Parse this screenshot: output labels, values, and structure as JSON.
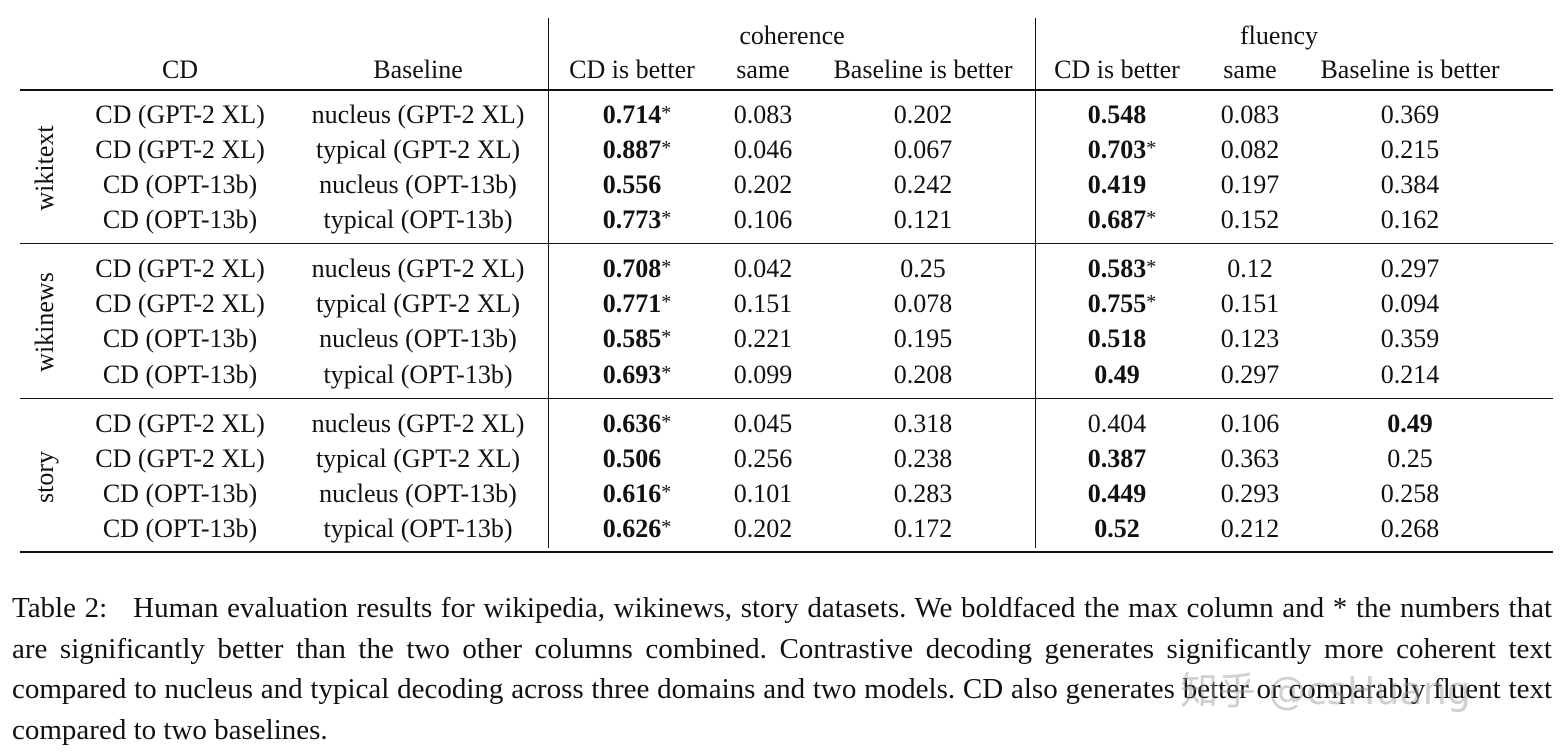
{
  "table": {
    "groups": [
      "coherence",
      "fluency"
    ],
    "columns": [
      "CD",
      "Baseline",
      "CD is better",
      "same",
      "Baseline is better",
      "CD is better",
      "same",
      "Baseline is better"
    ],
    "sections": [
      {
        "name": "wikitext",
        "rows": [
          {
            "cd": "CD (GPT-2 XL)",
            "baseline": "nucleus (GPT-2 XL)",
            "cells": [
              {
                "value": 0.714,
                "bold": true,
                "mark": "*"
              },
              {
                "value": 0.083
              },
              {
                "value": 0.202
              },
              {
                "value": 0.548,
                "bold": true
              },
              {
                "value": 0.083
              },
              {
                "value": 0.369
              }
            ]
          },
          {
            "cd": "CD (GPT-2 XL)",
            "baseline": "typical (GPT-2 XL)",
            "cells": [
              {
                "value": 0.887,
                "bold": true,
                "mark": "*"
              },
              {
                "value": 0.046
              },
              {
                "value": 0.067
              },
              {
                "value": 0.703,
                "bold": true,
                "mark": "*"
              },
              {
                "value": 0.082
              },
              {
                "value": 0.215
              }
            ]
          },
          {
            "cd": "CD (OPT-13b)",
            "baseline": "nucleus (OPT-13b)",
            "cells": [
              {
                "value": 0.556,
                "bold": true
              },
              {
                "value": 0.202
              },
              {
                "value": 0.242
              },
              {
                "value": 0.419,
                "bold": true
              },
              {
                "value": 0.197
              },
              {
                "value": 0.384
              }
            ]
          },
          {
            "cd": "CD (OPT-13b)",
            "baseline": "typical (OPT-13b)",
            "cells": [
              {
                "value": 0.773,
                "bold": true,
                "mark": "*"
              },
              {
                "value": 0.106
              },
              {
                "value": 0.121
              },
              {
                "value": 0.687,
                "bold": true,
                "mark": "*"
              },
              {
                "value": 0.152
              },
              {
                "value": 0.162
              }
            ]
          }
        ]
      },
      {
        "name": "wikinews",
        "rows": [
          {
            "cd": "CD (GPT-2 XL)",
            "baseline": "nucleus (GPT-2 XL)",
            "cells": [
              {
                "value": 0.708,
                "bold": true,
                "mark": "*"
              },
              {
                "value": 0.042
              },
              {
                "value": 0.25
              },
              {
                "value": 0.583,
                "bold": true,
                "mark": "*"
              },
              {
                "value": 0.12
              },
              {
                "value": 0.297
              }
            ]
          },
          {
            "cd": "CD (GPT-2 XL)",
            "baseline": "typical (GPT-2 XL)",
            "cells": [
              {
                "value": 0.771,
                "bold": true,
                "mark": "*"
              },
              {
                "value": 0.151
              },
              {
                "value": 0.078
              },
              {
                "value": 0.755,
                "bold": true,
                "mark": "*"
              },
              {
                "value": 0.151
              },
              {
                "value": 0.094
              }
            ]
          },
          {
            "cd": "CD (OPT-13b)",
            "baseline": "nucleus (OPT-13b)",
            "cells": [
              {
                "value": 0.585,
                "bold": true,
                "mark": "*"
              },
              {
                "value": 0.221
              },
              {
                "value": 0.195
              },
              {
                "value": 0.518,
                "bold": true
              },
              {
                "value": 0.123
              },
              {
                "value": 0.359
              }
            ]
          },
          {
            "cd": "CD (OPT-13b)",
            "baseline": "typical (OPT-13b)",
            "cells": [
              {
                "value": 0.693,
                "bold": true,
                "mark": "*"
              },
              {
                "value": 0.099
              },
              {
                "value": 0.208
              },
              {
                "value": 0.49,
                "bold": true
              },
              {
                "value": 0.297
              },
              {
                "value": 0.214
              }
            ]
          }
        ]
      },
      {
        "name": "story",
        "rows": [
          {
            "cd": "CD (GPT-2 XL)",
            "baseline": "nucleus (GPT-2 XL)",
            "cells": [
              {
                "value": 0.636,
                "bold": true,
                "mark": "*"
              },
              {
                "value": 0.045
              },
              {
                "value": 0.318
              },
              {
                "value": 0.404
              },
              {
                "value": 0.106
              },
              {
                "value": 0.49,
                "bold": true
              }
            ]
          },
          {
            "cd": "CD (GPT-2 XL)",
            "baseline": "typical (GPT-2 XL)",
            "cells": [
              {
                "value": 0.506,
                "bold": true
              },
              {
                "value": 0.256
              },
              {
                "value": 0.238
              },
              {
                "value": 0.387,
                "bold": true
              },
              {
                "value": 0.363
              },
              {
                "value": 0.25
              }
            ]
          },
          {
            "cd": "CD (OPT-13b)",
            "baseline": "nucleus (OPT-13b)",
            "cells": [
              {
                "value": 0.616,
                "bold": true,
                "mark": "*"
              },
              {
                "value": 0.101
              },
              {
                "value": 0.283
              },
              {
                "value": 0.449,
                "bold": true
              },
              {
                "value": 0.293
              },
              {
                "value": 0.258
              }
            ]
          },
          {
            "cd": "CD (OPT-13b)",
            "baseline": "typical (OPT-13b)",
            "cells": [
              {
                "value": 0.626,
                "bold": true,
                "mark": "*"
              },
              {
                "value": 0.202
              },
              {
                "value": 0.172
              },
              {
                "value": 0.52,
                "bold": true
              },
              {
                "value": 0.212
              },
              {
                "value": 0.268
              }
            ]
          }
        ]
      }
    ]
  },
  "caption": {
    "label": "Table 2:",
    "text": "Human evaluation results for wikipedia, wikinews, story datasets. We boldfaced the max column and * the numbers that are significantly better than the two other columns combined. Contrastive decoding generates significantly more coherent text compared to nucleus and typical decoding across three domains and two models. CD also generates better or comparably fluent text compared to two baselines."
  },
  "watermark": "知乎 @csHuang"
}
